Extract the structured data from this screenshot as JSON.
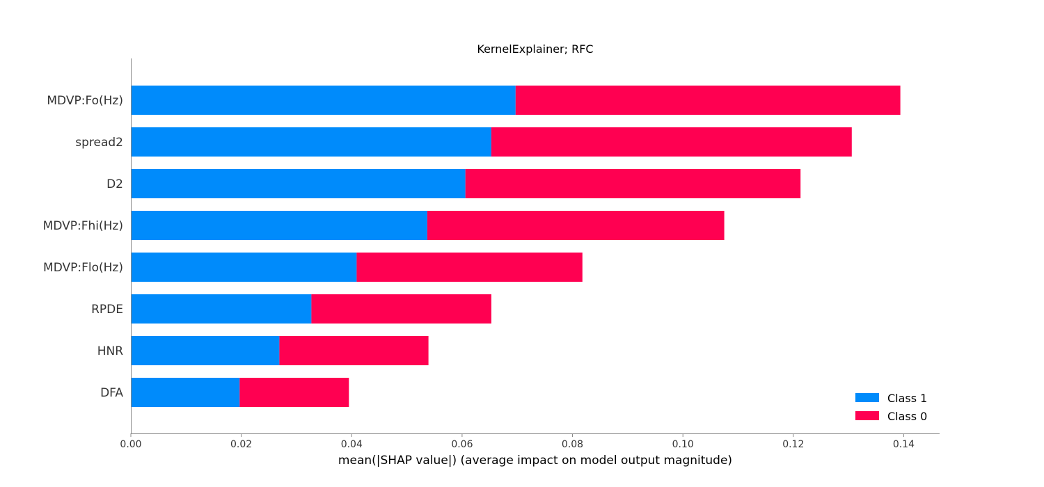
{
  "chart_data": {
    "type": "bar",
    "orientation": "horizontal",
    "stacked": true,
    "title": "KernelExplainer; RFC",
    "xlabel": "mean(|SHAP value|) (average impact on model output magnitude)",
    "ylabel": "",
    "xlim": [
      0.0,
      0.1465
    ],
    "xticks": [
      0.0,
      0.02,
      0.04,
      0.06,
      0.08,
      0.1,
      0.12,
      0.14
    ],
    "xtick_labels": [
      "0.00",
      "0.02",
      "0.04",
      "0.06",
      "0.08",
      "0.10",
      "0.12",
      "0.14"
    ],
    "grid": false,
    "legend_position": "bottom-right",
    "categories": [
      "MDVP:Fo(Hz)",
      "spread2",
      "D2",
      "MDVP:Fhi(Hz)",
      "MDVP:Flo(Hz)",
      "RPDE",
      "HNR",
      "DFA"
    ],
    "series": [
      {
        "name": "Class 1",
        "color": "#008bfb",
        "values": [
          0.0697,
          0.0653,
          0.0606,
          0.0537,
          0.0409,
          0.0327,
          0.0269,
          0.0197
        ]
      },
      {
        "name": "Class 0",
        "color": "#ff0051",
        "values": [
          0.0697,
          0.0653,
          0.0607,
          0.0538,
          0.0409,
          0.0326,
          0.027,
          0.0198
        ]
      }
    ]
  }
}
